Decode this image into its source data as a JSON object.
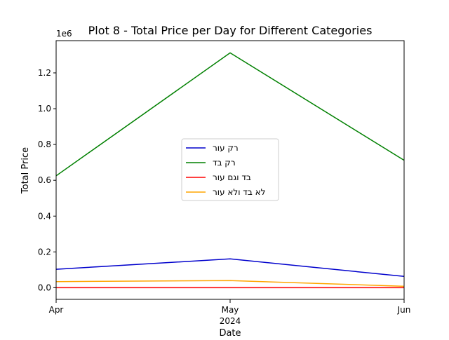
{
  "chart_data": {
    "type": "line",
    "title": "Plot 8 - Total Price per Day for Different Categories",
    "xlabel": "Date",
    "ylabel": "Total Price",
    "y_offset_label": "1e6",
    "x": [
      "2024-04",
      "2024-05",
      "2024-06"
    ],
    "x_tick_labels": [
      "Apr",
      "May",
      "Jun"
    ],
    "x_year_label": "2024",
    "ylim": [
      -0.065,
      1.38
    ],
    "y_ticks": [
      0.0,
      0.2,
      0.4,
      0.6,
      0.8,
      1.0,
      1.2
    ],
    "y_tick_labels": [
      "0.0",
      "0.2",
      "0.4",
      "0.6",
      "0.8",
      "1.0",
      "1.2"
    ],
    "legend_position": "center",
    "grid": false,
    "series": [
      {
        "name": "רק עור",
        "color": "#0000cc",
        "values": [
          0.103,
          0.161,
          0.063
        ]
      },
      {
        "name": "רק בד",
        "color": "#008000",
        "values": [
          0.625,
          1.312,
          0.712
        ]
      },
      {
        "name": "בד וגם עור",
        "color": "#ff0000",
        "values": [
          0.0,
          0.0,
          0.0
        ]
      },
      {
        "name": "לא בד ולא עור",
        "color": "#ffa500",
        "values": [
          0.034,
          0.04,
          0.008
        ]
      }
    ]
  }
}
